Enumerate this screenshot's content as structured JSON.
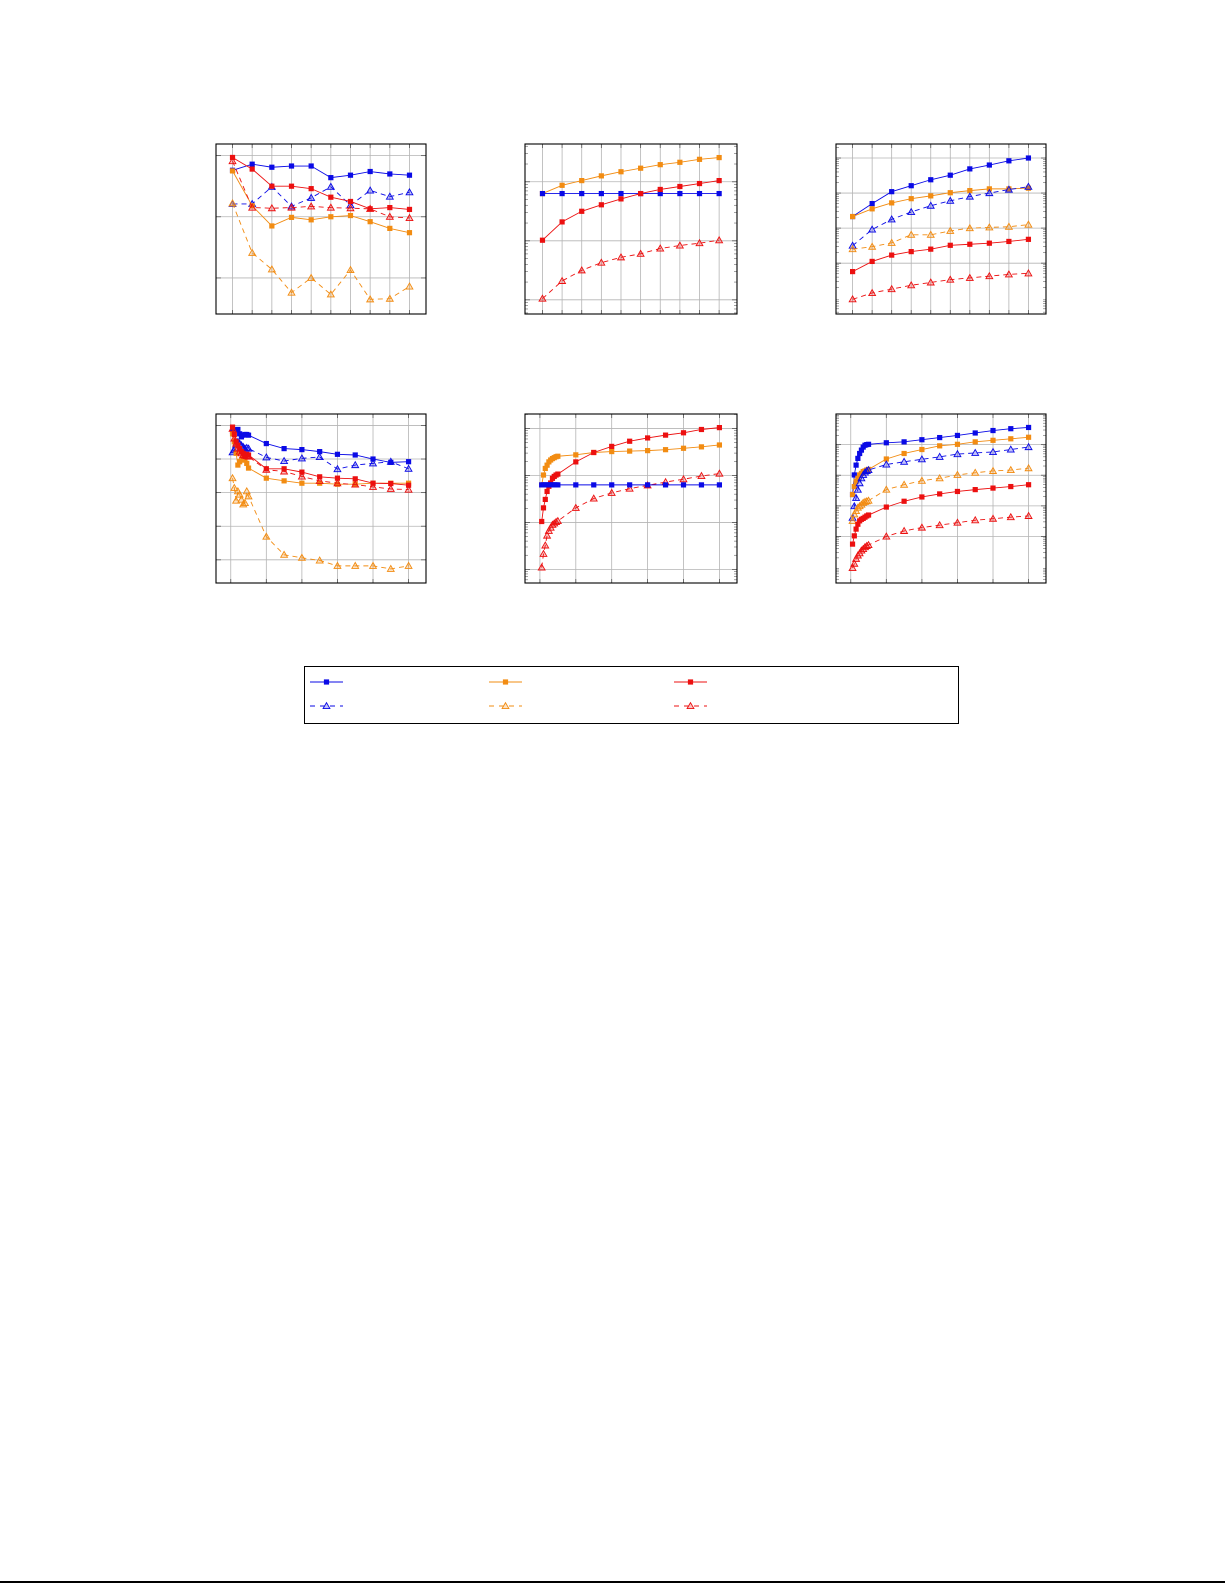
{
  "colors": {
    "blue": "#0a0ae6",
    "orange": "#f28c12",
    "red": "#ec1010",
    "grid": "#b4b4b4"
  },
  "legend": {
    "placement": "bottom",
    "entries": [
      {
        "color": "blue",
        "style": "solid",
        "marker": "square"
      },
      {
        "color": "orange",
        "style": "solid",
        "marker": "square"
      },
      {
        "color": "red",
        "style": "solid",
        "marker": "square"
      },
      {
        "color": "blue",
        "style": "dashed",
        "marker": "triangle"
      },
      {
        "color": "orange",
        "style": "dashed",
        "marker": "triangle"
      },
      {
        "color": "red",
        "style": "dashed",
        "marker": "triangle"
      }
    ]
  },
  "chart_data": [
    {
      "type": "line",
      "grid": true,
      "y_minor_ticks": false,
      "x": [
        1,
        2,
        3,
        4,
        5,
        6,
        7,
        8,
        9,
        10
      ],
      "xlim": [
        0.16,
        10.84
      ],
      "xgrid": [
        1,
        2,
        3,
        4,
        5,
        6,
        7,
        8,
        9,
        10
      ],
      "ylim": [
        -0.59,
        2.19
      ],
      "ygrid": [
        0,
        1,
        2
      ],
      "series": [
        {
          "color": "blue",
          "style": "solid",
          "marker": "square",
          "values": [
            1.76,
            1.86,
            1.81,
            1.83,
            1.83,
            1.64,
            1.68,
            1.74,
            1.7,
            1.68
          ]
        },
        {
          "color": "blue",
          "style": "dashed",
          "marker": "triangle",
          "values": [
            1.21,
            1.21,
            1.49,
            1.17,
            1.31,
            1.49,
            1.19,
            1.43,
            1.33,
            1.4
          ]
        },
        {
          "color": "orange",
          "style": "solid",
          "marker": "square",
          "values": [
            1.75,
            1.18,
            0.85,
            0.99,
            0.95,
            1.0,
            1.02,
            0.92,
            0.81,
            0.74
          ]
        },
        {
          "color": "orange",
          "style": "dashed",
          "marker": "triangle",
          "values": [
            1.22,
            0.41,
            0.14,
            -0.24,
            0.0,
            -0.27,
            0.13,
            -0.35,
            -0.34,
            -0.14
          ]
        },
        {
          "color": "red",
          "style": "solid",
          "marker": "square",
          "values": [
            1.97,
            1.78,
            1.5,
            1.5,
            1.46,
            1.32,
            1.25,
            1.13,
            1.15,
            1.12
          ]
        },
        {
          "color": "red",
          "style": "dashed",
          "marker": "triangle",
          "values": [
            1.91,
            1.15,
            1.14,
            1.15,
            1.17,
            1.15,
            1.14,
            1.13,
            1.0,
            0.98
          ]
        }
      ]
    },
    {
      "type": "line",
      "grid": true,
      "y_minor_ticks": true,
      "x": [
        1,
        2,
        3,
        4,
        5,
        6,
        7,
        8,
        9,
        10
      ],
      "xlim": [
        0.11,
        10.91
      ],
      "xgrid": [
        1,
        2,
        3,
        4,
        5,
        6,
        7,
        8,
        9,
        10
      ],
      "ylim": [
        -0.24,
        2.64
      ],
      "ygrid": [
        0,
        1,
        2
      ],
      "series": [
        {
          "color": "orange",
          "style": "solid",
          "marker": "square",
          "values": [
            1.8,
            1.94,
            2.02,
            2.1,
            2.17,
            2.23,
            2.29,
            2.33,
            2.38,
            2.41
          ]
        },
        {
          "color": "blue",
          "style": "solid",
          "marker": "square",
          "values": [
            1.8,
            1.8,
            1.8,
            1.8,
            1.8,
            1.8,
            1.8,
            1.8,
            1.8,
            1.8
          ]
        },
        {
          "color": "red",
          "style": "solid",
          "marker": "square",
          "values": [
            1.01,
            1.32,
            1.5,
            1.61,
            1.71,
            1.8,
            1.87,
            1.92,
            1.97,
            2.02
          ]
        },
        {
          "color": "red",
          "style": "dashed",
          "marker": "triangle",
          "values": [
            0.02,
            0.32,
            0.5,
            0.63,
            0.72,
            0.78,
            0.87,
            0.92,
            0.96,
            1.01
          ]
        }
      ]
    },
    {
      "type": "line",
      "grid": true,
      "y_minor_ticks": true,
      "x": [
        1,
        2,
        3,
        4,
        5,
        6,
        7,
        8,
        9,
        10
      ],
      "xlim": [
        0.15,
        10.9
      ],
      "xgrid": [
        1,
        2,
        3,
        4,
        5,
        6,
        7,
        8,
        9,
        10
      ],
      "ylim": [
        -1.45,
        3.4
      ],
      "ygrid": [
        0,
        1,
        2,
        3
      ],
      "series": [
        {
          "color": "blue",
          "style": "solid",
          "marker": "square",
          "values": [
            1.33,
            1.7,
            2.04,
            2.21,
            2.38,
            2.51,
            2.69,
            2.8,
            2.92,
            3.0
          ]
        },
        {
          "color": "orange",
          "style": "solid",
          "marker": "square",
          "values": [
            1.33,
            1.55,
            1.72,
            1.84,
            1.92,
            2.01,
            2.07,
            2.12,
            2.12,
            2.14
          ]
        },
        {
          "color": "blue",
          "style": "dashed",
          "marker": "triangle",
          "values": [
            0.5,
            0.96,
            1.25,
            1.46,
            1.64,
            1.78,
            1.9,
            2.0,
            2.1,
            2.18
          ]
        },
        {
          "color": "orange",
          "style": "dashed",
          "marker": "triangle",
          "values": [
            0.4,
            0.47,
            0.58,
            0.81,
            0.81,
            0.92,
            1.0,
            1.02,
            1.04,
            1.1
          ]
        },
        {
          "color": "red",
          "style": "solid",
          "marker": "square",
          "values": [
            -0.24,
            0.05,
            0.23,
            0.33,
            0.4,
            0.51,
            0.54,
            0.57,
            0.62,
            0.68
          ]
        },
        {
          "color": "red",
          "style": "dashed",
          "marker": "triangle",
          "values": [
            -1.03,
            -0.85,
            -0.74,
            -0.63,
            -0.55,
            -0.47,
            -0.42,
            -0.37,
            -0.32,
            -0.29
          ]
        }
      ]
    },
    {
      "type": "line",
      "grid": true,
      "y_minor_ticks": false,
      "x": [
        1,
        2,
        3,
        4,
        5,
        6,
        7,
        8,
        9,
        10,
        20,
        30,
        40,
        50,
        60,
        70,
        80,
        90,
        100
      ],
      "xlim": [
        -8.3,
        109.8
      ],
      "xgrid": [
        0,
        20,
        40,
        60,
        80,
        100
      ],
      "ylim": [
        -0.69,
        4.34
      ],
      "ygrid": [
        0,
        1,
        2,
        3,
        4
      ],
      "series": [
        {
          "color": "blue",
          "style": "solid",
          "marker": "square",
          "values": [
            3.82,
            3.85,
            3.87,
            3.88,
            3.75,
            3.66,
            3.71,
            3.73,
            3.73,
            3.71,
            3.46,
            3.31,
            3.28,
            3.22,
            3.14,
            3.12,
            3.0,
            2.9,
            2.92
          ]
        },
        {
          "color": "blue",
          "style": "dashed",
          "marker": "triangle",
          "values": [
            3.2,
            3.26,
            3.41,
            3.51,
            3.46,
            3.41,
            3.36,
            3.31,
            3.33,
            3.31,
            3.05,
            2.94,
            3.02,
            3.06,
            2.7,
            2.82,
            2.87,
            2.92,
            2.71
          ]
        },
        {
          "color": "orange",
          "style": "solid",
          "marker": "square",
          "values": [
            3.75,
            3.51,
            3.17,
            2.82,
            2.92,
            2.97,
            3.02,
            2.97,
            2.87,
            2.73,
            2.43,
            2.35,
            2.28,
            2.28,
            2.25,
            2.25,
            2.28,
            2.28,
            2.28
          ]
        },
        {
          "color": "orange",
          "style": "dashed",
          "marker": "triangle",
          "values": [
            2.43,
            2.14,
            1.76,
            2.04,
            1.94,
            1.79,
            1.65,
            1.69,
            2.04,
            1.89,
            0.69,
            0.15,
            0.06,
            -0.02,
            -0.18,
            -0.18,
            -0.18,
            -0.27,
            -0.18
          ]
        },
        {
          "color": "red",
          "style": "solid",
          "marker": "square",
          "values": [
            3.95,
            3.73,
            3.51,
            3.41,
            3.31,
            3.22,
            3.17,
            3.12,
            3.14,
            3.12,
            2.71,
            2.71,
            2.61,
            2.47,
            2.43,
            2.41,
            2.28,
            2.27,
            2.22
          ]
        },
        {
          "color": "red",
          "style": "dashed",
          "marker": "triangle",
          "values": [
            3.9,
            3.61,
            3.46,
            3.31,
            3.22,
            3.17,
            3.12,
            3.1,
            3.09,
            3.07,
            2.68,
            2.63,
            2.48,
            2.35,
            2.28,
            2.24,
            2.17,
            2.11,
            2.09
          ]
        }
      ]
    },
    {
      "type": "line",
      "grid": true,
      "y_minor_ticks": true,
      "x": [
        1,
        2,
        3,
        4,
        5,
        6,
        7,
        8,
        9,
        10,
        20,
        30,
        40,
        50,
        60,
        70,
        80,
        90,
        100
      ],
      "xlim": [
        -8.3,
        109.8
      ],
      "xgrid": [
        0,
        20,
        40,
        60,
        80,
        100
      ],
      "ylim": [
        -0.29,
        3.31
      ],
      "ygrid": [
        0,
        1,
        2,
        3
      ],
      "series": [
        {
          "color": "orange",
          "style": "solid",
          "marker": "square",
          "values": [
            1.8,
            2.01,
            2.15,
            2.22,
            2.29,
            2.33,
            2.36,
            2.38,
            2.4,
            2.41,
            2.44,
            2.49,
            2.51,
            2.52,
            2.53,
            2.55,
            2.58,
            2.61,
            2.65
          ]
        },
        {
          "color": "red",
          "style": "solid",
          "marker": "square",
          "values": [
            1.02,
            1.31,
            1.49,
            1.66,
            1.77,
            1.84,
            1.94,
            1.98,
            2.01,
            2.03,
            2.29,
            2.49,
            2.62,
            2.73,
            2.8,
            2.86,
            2.91,
            2.98,
            3.02
          ]
        },
        {
          "color": "red",
          "style": "dashed",
          "marker": "triangle",
          "values": [
            0.04,
            0.33,
            0.51,
            0.72,
            0.82,
            0.89,
            0.95,
            0.98,
            1.01,
            1.03,
            1.31,
            1.51,
            1.63,
            1.72,
            1.79,
            1.86,
            1.92,
            1.99,
            2.04
          ]
        },
        {
          "color": "blue",
          "style": "solid",
          "marker": "square",
          "values": [
            1.8,
            1.8,
            1.8,
            1.8,
            1.8,
            1.8,
            1.8,
            1.8,
            1.8,
            1.8,
            1.8,
            1.8,
            1.8,
            1.8,
            1.8,
            1.8,
            1.8,
            1.8,
            1.8
          ]
        }
      ]
    },
    {
      "type": "line",
      "grid": true,
      "y_minor_ticks": true,
      "x": [
        1,
        2,
        3,
        4,
        5,
        6,
        7,
        8,
        9,
        10,
        20,
        30,
        40,
        50,
        60,
        70,
        80,
        90,
        100
      ],
      "xlim": [
        -8.3,
        109.8
      ],
      "xgrid": [
        0,
        20,
        40,
        60,
        80,
        100
      ],
      "ylim": [
        -1.52,
        4.0
      ],
      "ygrid": [
        0,
        1,
        2,
        3
      ],
      "series": [
        {
          "color": "blue",
          "style": "solid",
          "marker": "square",
          "values": [
            1.37,
            2.01,
            2.33,
            2.55,
            2.71,
            2.82,
            2.92,
            2.98,
            3.0,
            3.01,
            3.06,
            3.09,
            3.16,
            3.23,
            3.3,
            3.38,
            3.46,
            3.52,
            3.56
          ]
        },
        {
          "color": "orange",
          "style": "solid",
          "marker": "square",
          "values": [
            1.37,
            1.63,
            1.8,
            1.9,
            2.01,
            2.06,
            2.12,
            2.14,
            2.17,
            2.19,
            2.53,
            2.71,
            2.84,
            2.96,
            3.01,
            3.09,
            3.14,
            3.19,
            3.24
          ]
        },
        {
          "color": "blue",
          "style": "dashed",
          "marker": "triangle",
          "values": [
            0.61,
            0.99,
            1.26,
            1.53,
            1.74,
            1.9,
            2.01,
            2.09,
            2.14,
            2.17,
            2.35,
            2.44,
            2.52,
            2.6,
            2.69,
            2.73,
            2.76,
            2.84,
            2.92
          ]
        },
        {
          "color": "orange",
          "style": "dashed",
          "marker": "triangle",
          "values": [
            0.51,
            0.72,
            0.83,
            0.94,
            0.99,
            1.04,
            1.1,
            1.13,
            1.15,
            1.17,
            1.53,
            1.69,
            1.82,
            1.9,
            2.01,
            2.08,
            2.14,
            2.17,
            2.23
          ]
        },
        {
          "color": "red",
          "style": "solid",
          "marker": "square",
          "values": [
            -0.25,
            0.02,
            0.24,
            0.4,
            0.51,
            0.56,
            0.59,
            0.63,
            0.67,
            0.7,
            0.96,
            1.15,
            1.29,
            1.39,
            1.47,
            1.53,
            1.58,
            1.63,
            1.69
          ]
        },
        {
          "color": "red",
          "style": "dashed",
          "marker": "triangle",
          "values": [
            -1.03,
            -0.89,
            -0.73,
            -0.62,
            -0.55,
            -0.46,
            -0.41,
            -0.35,
            -0.31,
            -0.28,
            0.0,
            0.18,
            0.29,
            0.37,
            0.45,
            0.53,
            0.58,
            0.63,
            0.67
          ]
        }
      ]
    }
  ]
}
